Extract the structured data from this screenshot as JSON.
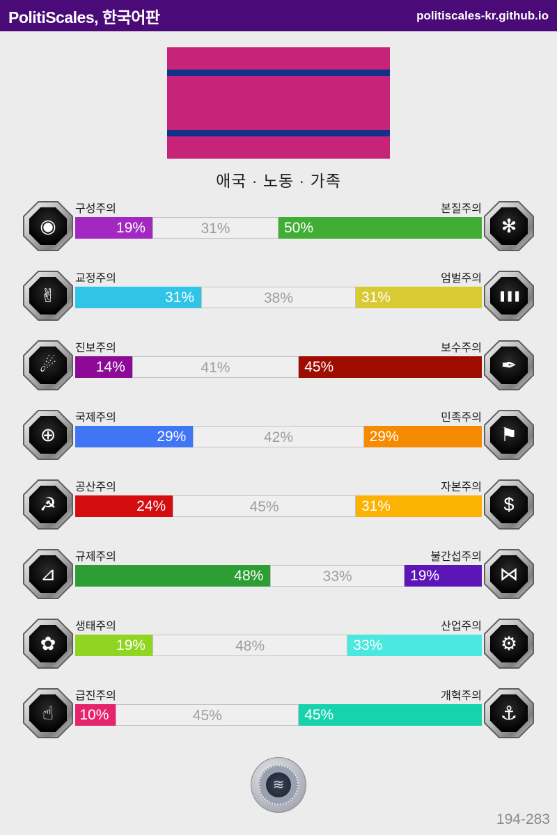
{
  "header": {
    "title": "PolitiScales, 한국어판",
    "site": "politiscales-kr.github.io",
    "bg_color": "#4a0a78"
  },
  "flag": {
    "caption": "애국 · 노동 · 가족",
    "base_color": "#c62478",
    "stripe_color": "#12328a"
  },
  "axes": [
    {
      "left_label": "구성주의",
      "right_label": "본질주의",
      "left_value": "19%",
      "mid_value": "31%",
      "right_value": "50%",
      "left_pct": 19,
      "mid_pct": 31,
      "right_pct": 50,
      "left_color": "#a328c2",
      "right_color": "#42ad34",
      "left_icon": "eye-icon",
      "right_icon": "flower-burst-icon",
      "left_glyph": "◉",
      "right_glyph": "✻"
    },
    {
      "left_label": "교정주의",
      "right_label": "엄벌주의",
      "left_value": "31%",
      "mid_value": "38%",
      "right_value": "31%",
      "left_pct": 31,
      "mid_pct": 38,
      "right_pct": 31,
      "left_color": "#30c5e6",
      "right_color": "#d8ca32",
      "left_icon": "handshake-icon",
      "right_icon": "prison-bars-icon",
      "left_glyph": "✌",
      "right_glyph": "❚❚❚"
    },
    {
      "left_label": "진보주의",
      "right_label": "보수주의",
      "left_value": "14%",
      "mid_value": "41%",
      "right_value": "45%",
      "left_pct": 14,
      "mid_pct": 41,
      "right_pct": 45,
      "left_color": "#8d0a96",
      "right_color": "#9e0b00",
      "left_icon": "comet-icon",
      "right_icon": "pen-nib-icon",
      "left_glyph": "☄",
      "right_glyph": "✒"
    },
    {
      "left_label": "국제주의",
      "right_label": "민족주의",
      "left_value": "29%",
      "mid_value": "42%",
      "right_value": "29%",
      "left_pct": 29,
      "mid_pct": 42,
      "right_pct": 29,
      "left_color": "#4076f5",
      "right_color": "#f68a00",
      "left_icon": "globe-icon",
      "right_icon": "flag-icon",
      "left_glyph": "⊕",
      "right_glyph": "⚑"
    },
    {
      "left_label": "공산주의",
      "right_label": "자본주의",
      "left_value": "24%",
      "mid_value": "45%",
      "right_value": "31%",
      "left_pct": 24,
      "mid_pct": 45,
      "right_pct": 31,
      "left_color": "#d40d10",
      "right_color": "#fcb200",
      "left_icon": "hammer-sickle-icon",
      "right_icon": "money-bag-icon",
      "left_glyph": "☭",
      "right_glyph": "$"
    },
    {
      "left_label": "규제주의",
      "right_label": "불간섭주의",
      "left_value": "48%",
      "mid_value": "33%",
      "right_value": "19%",
      "left_pct": 48,
      "mid_pct": 33,
      "right_pct": 19,
      "left_color": "#2d9e33",
      "right_color": "#5c16b8",
      "left_icon": "ruler-icon",
      "right_icon": "butterfly-icon",
      "left_glyph": "⊿",
      "right_glyph": "⋈"
    },
    {
      "left_label": "생태주의",
      "right_label": "산업주의",
      "left_value": "19%",
      "mid_value": "48%",
      "right_value": "33%",
      "left_pct": 19,
      "mid_pct": 48,
      "right_pct": 33,
      "left_color": "#8fd522",
      "right_color": "#4ae8de",
      "left_icon": "plant-icon",
      "right_icon": "gear-icon",
      "left_glyph": "✿",
      "right_glyph": "⚙"
    },
    {
      "left_label": "급진주의",
      "right_label": "개혁주의",
      "left_value": "10%",
      "mid_value": "45%",
      "right_value": "45%",
      "left_pct": 10,
      "mid_pct": 45,
      "right_pct": 45,
      "left_color": "#e5246e",
      "right_color": "#17d3ad",
      "left_icon": "raised-fist-icon",
      "right_icon": "sailboat-icon",
      "left_glyph": "☝",
      "right_glyph": "⚓"
    }
  ],
  "footer": {
    "seal_glyph": "≋",
    "code": "194-283"
  }
}
